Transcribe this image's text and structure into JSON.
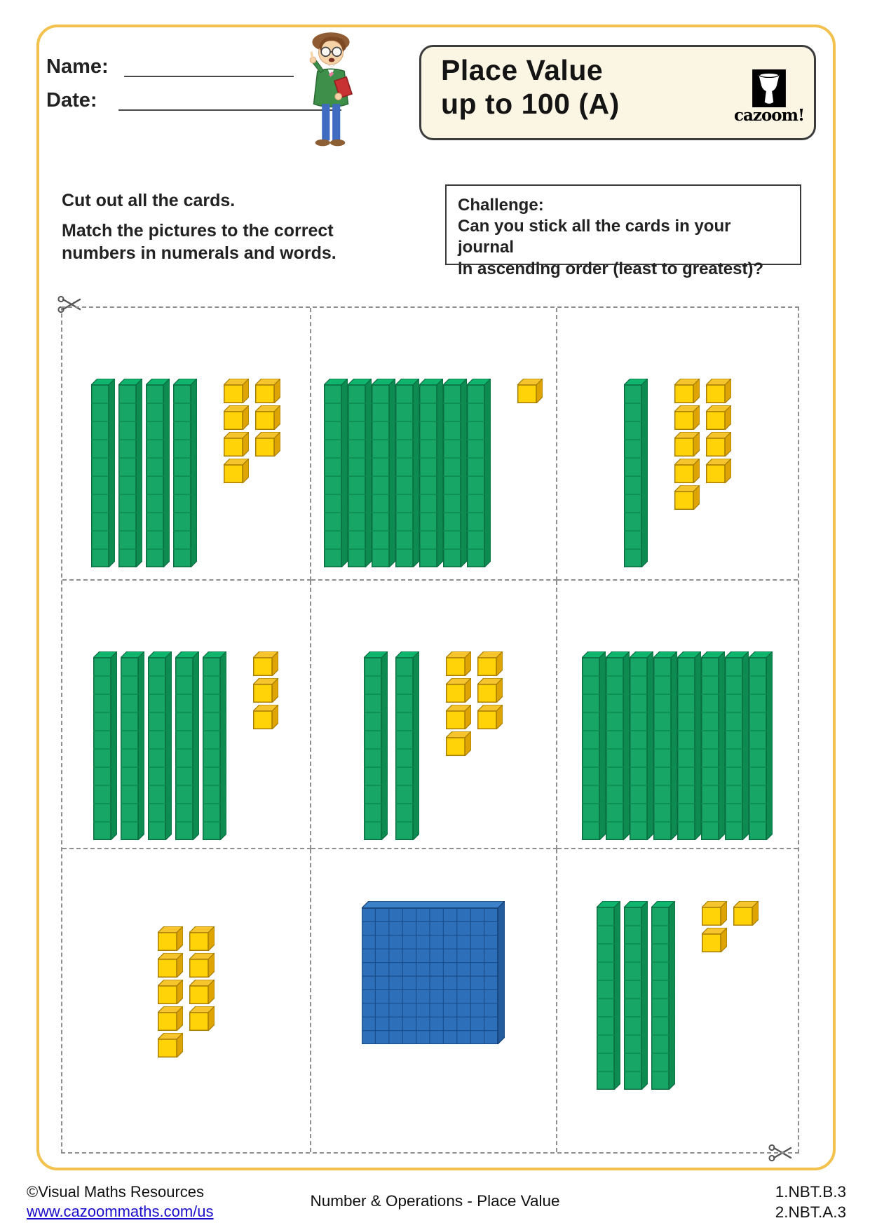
{
  "header": {
    "name_label": "Name:",
    "date_label": "Date:",
    "title": {
      "line1": "Place Value",
      "line2": "up to 100 (A)"
    },
    "logo_text": "cazoom!"
  },
  "instructions": {
    "line1": "Cut out all the cards.",
    "line2": "Match the pictures to the correct",
    "line3": "numbers in numerals and words."
  },
  "challenge": {
    "heading": "Challenge:",
    "line1": "Can you stick all the cards in your journal",
    "line2": "in ascending order (least to greatest)?"
  },
  "cards": {
    "description": "Base-ten block picture cards: green rods = tens, yellow cubes = ones, blue flat = one hundred",
    "items": [
      {
        "value": 47,
        "hundreds": 0,
        "tens": 4,
        "ones": 7,
        "ones_columns": [
          4,
          3
        ]
      },
      {
        "value": 71,
        "hundreds": 0,
        "tens": 7,
        "ones": 1,
        "ones_columns": [
          1
        ]
      },
      {
        "value": 19,
        "hundreds": 0,
        "tens": 1,
        "ones": 9,
        "ones_columns": [
          5,
          4
        ]
      },
      {
        "value": 53,
        "hundreds": 0,
        "tens": 5,
        "ones": 3,
        "ones_columns": [
          3
        ]
      },
      {
        "value": 27,
        "hundreds": 0,
        "tens": 2,
        "ones": 7,
        "ones_columns": [
          4,
          3
        ]
      },
      {
        "value": 80,
        "hundreds": 0,
        "tens": 8,
        "ones": 0,
        "ones_columns": []
      },
      {
        "value": 9,
        "hundreds": 0,
        "tens": 0,
        "ones": 9,
        "ones_columns": [
          5,
          4
        ]
      },
      {
        "value": 100,
        "hundreds": 1,
        "tens": 0,
        "ones": 0,
        "ones_columns": []
      },
      {
        "value": 33,
        "hundreds": 0,
        "tens": 3,
        "ones": 3,
        "ones_columns": [
          2,
          1
        ]
      }
    ]
  },
  "colors": {
    "accent_border": "#F2C14E",
    "ten_rod": {
      "front": "#18A666",
      "top": "#0FB46D",
      "side": "#0E8B51",
      "outline": "#0A6B40",
      "segment": "#0C8A50"
    },
    "one_cube": {
      "front": "#FFD308",
      "top": "#F6C52E",
      "side": "#DDA404",
      "outline": "#A67C00"
    },
    "hundred_flat": {
      "front": "#2D6FB8",
      "top": "#3B82C9",
      "side": "#245D9E",
      "outline": "#143E73",
      "grid": "#1A4E8C"
    },
    "link": "#1A0DCC"
  },
  "footer": {
    "copyright": "©Visual Maths Resources",
    "url": "www.cazoommaths.com/us",
    "center": "Number & Operations - Place Value",
    "standards": [
      "1.NBT.B.3",
      "2.NBT.A.3"
    ]
  }
}
